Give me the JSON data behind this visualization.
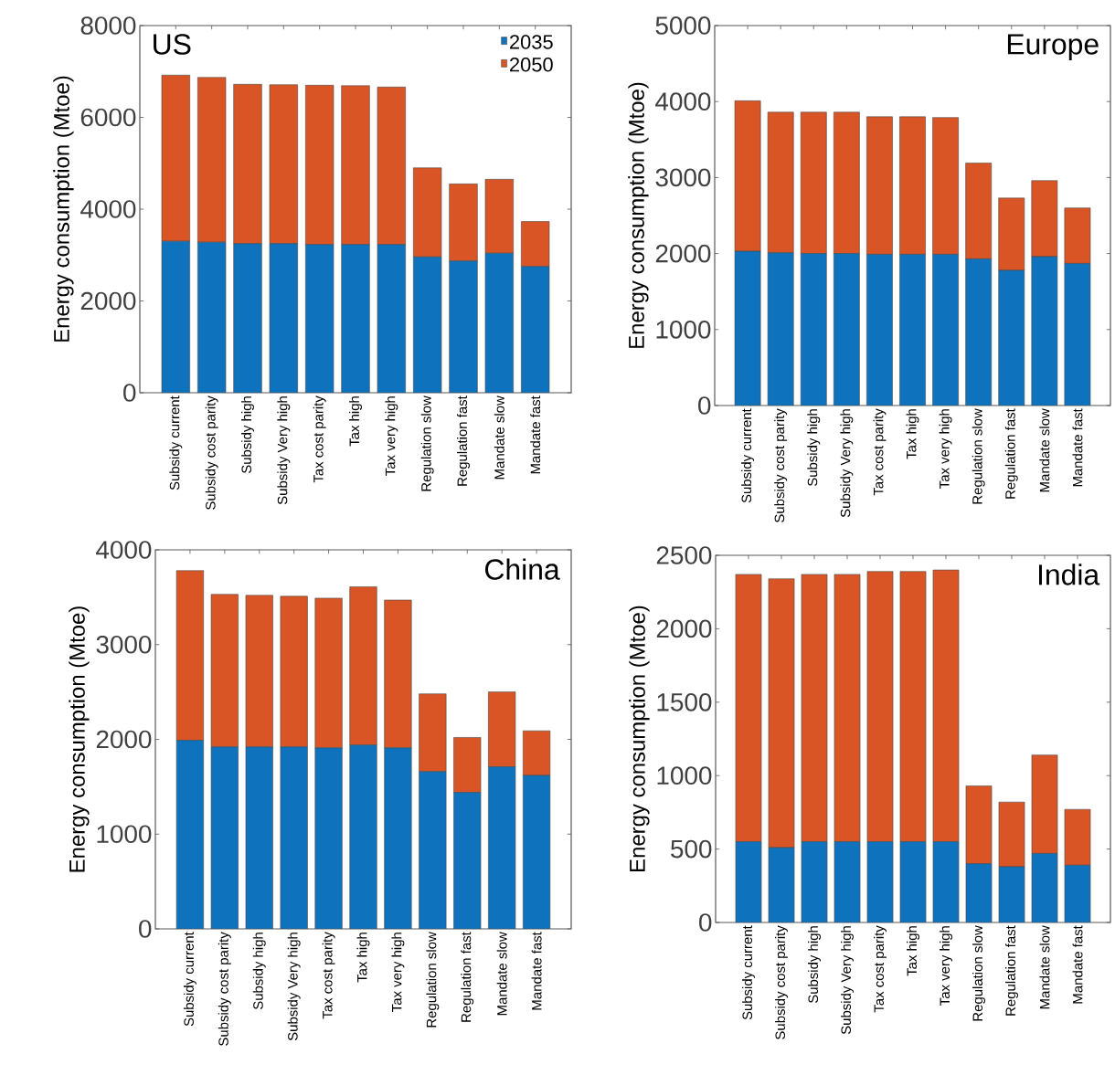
{
  "chart_data": [
    {
      "type": "bar",
      "title": "US",
      "ylabel": "Energy consumption (Mtoe)",
      "stacked": true,
      "legend": "top right",
      "categories": [
        "Subsidy current",
        "Subsidy cost parity",
        "Subsidy high",
        "Subsidy Very high",
        "Tax cost parity",
        "Tax high",
        "Tax very high",
        "Regulation slow",
        "Regulation fast",
        "Mandate slow",
        "Mandate fast"
      ],
      "ylim": [
        0,
        8000
      ],
      "yticks": [
        0,
        2000,
        4000,
        6000,
        8000
      ],
      "series": [
        {
          "name": "2035",
          "color": "#0f72bd",
          "values": [
            3300,
            3280,
            3250,
            3250,
            3230,
            3230,
            3230,
            2960,
            2870,
            3040,
            2750
          ]
        },
        {
          "name": "2050",
          "color": "#d95525",
          "values": [
            3620,
            3590,
            3470,
            3460,
            3470,
            3460,
            3430,
            1940,
            1680,
            1610,
            980
          ]
        }
      ]
    },
    {
      "type": "bar",
      "title": "Europe",
      "ylabel": "Energy consumption (Mtoe)",
      "stacked": true,
      "categories": [
        "Subsidy current",
        "Subsidy cost parity",
        "Subsidy high",
        "Subsidy Very high",
        "Tax cost parity",
        "Tax high",
        "Tax very high",
        "Regulation slow",
        "Regulation fast",
        "Mandate slow",
        "Mandate fast"
      ],
      "ylim": [
        0,
        5000
      ],
      "yticks": [
        0,
        1000,
        2000,
        3000,
        4000,
        5000
      ],
      "series": [
        {
          "color": "#0f72bd",
          "values": [
            2030,
            2010,
            2000,
            2000,
            1990,
            1990,
            1990,
            1930,
            1780,
            1960,
            1870
          ]
        },
        {
          "color": "#d95525",
          "values": [
            1980,
            1850,
            1860,
            1860,
            1810,
            1810,
            1800,
            1260,
            950,
            1000,
            730
          ]
        }
      ]
    },
    {
      "type": "bar",
      "title": "China",
      "ylabel": "Energy consumption (Mtoe)",
      "stacked": true,
      "categories": [
        "Subsidy current",
        "Subsidy cost parity",
        "Subsidy high",
        "Subsidy Very high",
        "Tax cost parity",
        "Tax high",
        "Tax very high",
        "Regulation slow",
        "Regulation fast",
        "Mandate slow",
        "Mandate fast"
      ],
      "ylim": [
        0,
        4000
      ],
      "yticks": [
        0,
        1000,
        2000,
        3000,
        4000
      ],
      "series": [
        {
          "color": "#0f72bd",
          "values": [
            1990,
            1920,
            1920,
            1920,
            1910,
            1940,
            1910,
            1660,
            1440,
            1710,
            1620
          ]
        },
        {
          "color": "#d95525",
          "values": [
            1790,
            1610,
            1600,
            1590,
            1580,
            1670,
            1560,
            820,
            580,
            790,
            470
          ]
        }
      ]
    },
    {
      "type": "bar",
      "title": "India",
      "ylabel": "Energy consumption (Mtoe)",
      "stacked": true,
      "categories": [
        "Subsidy current",
        "Subsidy cost parity",
        "Subsidy high",
        "Subsidy Very high",
        "Tax cost parity",
        "Tax high",
        "Tax very high",
        "Regulation slow",
        "Regulation fast",
        "Mandate slow",
        "Mandate fast"
      ],
      "ylim": [
        0,
        2500
      ],
      "yticks": [
        0,
        500,
        1000,
        1500,
        2000,
        2500
      ],
      "series": [
        {
          "color": "#0f72bd",
          "values": [
            550,
            510,
            550,
            550,
            550,
            550,
            550,
            400,
            380,
            470,
            390
          ]
        },
        {
          "color": "#d95525",
          "values": [
            1820,
            1830,
            1820,
            1820,
            1840,
            1840,
            1850,
            530,
            440,
            670,
            380
          ]
        }
      ]
    }
  ]
}
